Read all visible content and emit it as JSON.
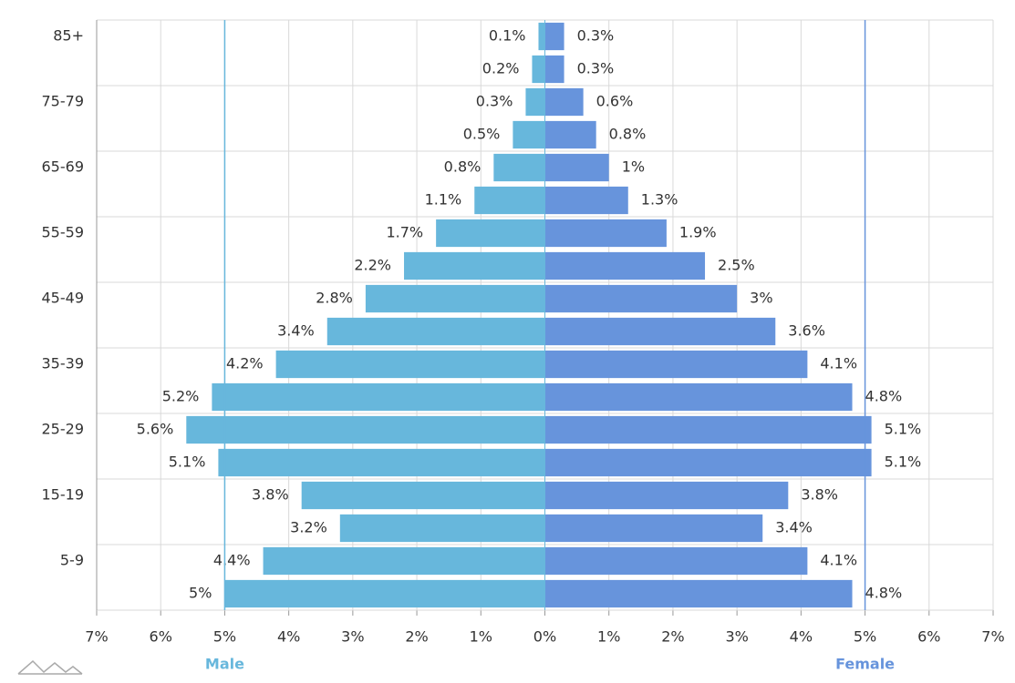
{
  "chart_data": {
    "type": "pyramid",
    "categories": [
      null,
      "5-9",
      null,
      "15-19",
      null,
      "25-29",
      null,
      "35-39",
      null,
      "45-49",
      null,
      "55-59",
      null,
      "65-69",
      null,
      "75-79",
      null,
      "85+"
    ],
    "series": [
      {
        "name": "Male",
        "color": "#67b7dc",
        "side": "left",
        "guide": -5,
        "values": [
          5,
          4.4,
          3.2,
          3.8,
          5.1,
          5.6,
          5.2,
          4.2,
          3.4,
          2.8,
          2.2,
          1.7,
          1.1,
          0.8,
          0.5,
          0.3,
          0.2,
          0.1
        ],
        "value_labels": [
          "5%",
          "4.4%",
          "3.2%",
          "3.8%",
          "5.1%",
          "5.6%",
          "5.2%",
          "4.2%",
          "3.4%",
          "2.8%",
          "2.2%",
          "1.7%",
          "1.1%",
          "0.8%",
          "0.5%",
          "0.3%",
          "0.2%",
          "0.1%"
        ]
      },
      {
        "name": "Female",
        "color": "#6794dc",
        "side": "right",
        "guide": 5,
        "values": [
          4.8,
          4.1,
          3.4,
          3.8,
          5.1,
          5.1,
          4.8,
          4.1,
          3.6,
          3,
          2.5,
          1.9,
          1.3,
          1,
          0.8,
          0.6,
          0.3,
          0.3
        ],
        "value_labels": [
          "4.8%",
          "4.1%",
          "3.4%",
          "3.8%",
          "5.1%",
          "5.1%",
          "4.8%",
          "4.1%",
          "3.6%",
          "3%",
          "2.5%",
          "1.9%",
          "1.3%",
          "1%",
          "0.8%",
          "0.6%",
          "0.3%",
          "0.3%"
        ]
      }
    ],
    "xlim": [
      -7,
      7
    ],
    "xticks": [
      {
        "value": -7,
        "label": "7%"
      },
      {
        "value": -6,
        "label": "6%"
      },
      {
        "value": -5,
        "label": "5%"
      },
      {
        "value": -4,
        "label": "4%"
      },
      {
        "value": -3,
        "label": "3%"
      },
      {
        "value": -2,
        "label": "2%"
      },
      {
        "value": -1,
        "label": "1%"
      },
      {
        "value": 0,
        "label": "0%"
      },
      {
        "value": 1,
        "label": "1%"
      },
      {
        "value": 2,
        "label": "2%"
      },
      {
        "value": 3,
        "label": "3%"
      },
      {
        "value": 4,
        "label": "4%"
      },
      {
        "value": 5,
        "label": "5%"
      },
      {
        "value": 6,
        "label": "6%"
      },
      {
        "value": 7,
        "label": "7%"
      }
    ],
    "grid": true
  }
}
